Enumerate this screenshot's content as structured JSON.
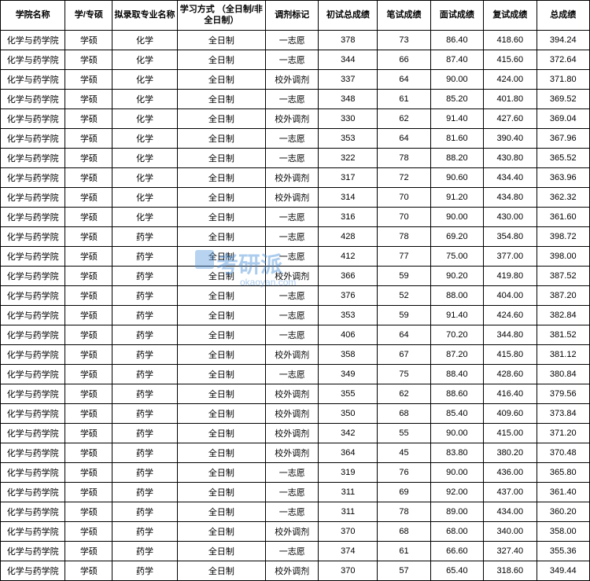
{
  "table": {
    "columns": [
      "学院名称",
      "学/专硕",
      "拟录取专业名称",
      "学习方式\n（全日制/非全日制）",
      "调剂标记",
      "初试总成绩",
      "笔试成绩",
      "面试成绩",
      "复试成绩",
      "总成绩"
    ],
    "rows": [
      [
        "化学与药学院",
        "学硕",
        "化学",
        "全日制",
        "一志愿",
        "378",
        "73",
        "86.40",
        "418.60",
        "394.24"
      ],
      [
        "化学与药学院",
        "学硕",
        "化学",
        "全日制",
        "一志愿",
        "344",
        "66",
        "87.40",
        "415.60",
        "372.64"
      ],
      [
        "化学与药学院",
        "学硕",
        "化学",
        "全日制",
        "校外调剂",
        "337",
        "64",
        "90.00",
        "424.00",
        "371.80"
      ],
      [
        "化学与药学院",
        "学硕",
        "化学",
        "全日制",
        "一志愿",
        "348",
        "61",
        "85.20",
        "401.80",
        "369.52"
      ],
      [
        "化学与药学院",
        "学硕",
        "化学",
        "全日制",
        "校外调剂",
        "330",
        "62",
        "91.40",
        "427.60",
        "369.04"
      ],
      [
        "化学与药学院",
        "学硕",
        "化学",
        "全日制",
        "一志愿",
        "353",
        "64",
        "81.60",
        "390.40",
        "367.96"
      ],
      [
        "化学与药学院",
        "学硕",
        "化学",
        "全日制",
        "一志愿",
        "322",
        "78",
        "88.20",
        "430.80",
        "365.52"
      ],
      [
        "化学与药学院",
        "学硕",
        "化学",
        "全日制",
        "校外调剂",
        "317",
        "72",
        "90.60",
        "434.40",
        "363.96"
      ],
      [
        "化学与药学院",
        "学硕",
        "化学",
        "全日制",
        "校外调剂",
        "314",
        "70",
        "91.20",
        "434.80",
        "362.32"
      ],
      [
        "化学与药学院",
        "学硕",
        "化学",
        "全日制",
        "一志愿",
        "316",
        "70",
        "90.00",
        "430.00",
        "361.60"
      ],
      [
        "化学与药学院",
        "学硕",
        "药学",
        "全日制",
        "一志愿",
        "428",
        "78",
        "69.20",
        "354.80",
        "398.72"
      ],
      [
        "化学与药学院",
        "学硕",
        "药学",
        "全日制",
        "一志愿",
        "412",
        "77",
        "75.00",
        "377.00",
        "398.00"
      ],
      [
        "化学与药学院",
        "学硕",
        "药学",
        "全日制",
        "校外调剂",
        "366",
        "59",
        "90.20",
        "419.80",
        "387.52"
      ],
      [
        "化学与药学院",
        "学硕",
        "药学",
        "全日制",
        "一志愿",
        "376",
        "52",
        "88.00",
        "404.00",
        "387.20"
      ],
      [
        "化学与药学院",
        "学硕",
        "药学",
        "全日制",
        "一志愿",
        "353",
        "59",
        "91.40",
        "424.60",
        "382.84"
      ],
      [
        "化学与药学院",
        "学硕",
        "药学",
        "全日制",
        "一志愿",
        "406",
        "64",
        "70.20",
        "344.80",
        "381.52"
      ],
      [
        "化学与药学院",
        "学硕",
        "药学",
        "全日制",
        "校外调剂",
        "358",
        "67",
        "87.20",
        "415.80",
        "381.12"
      ],
      [
        "化学与药学院",
        "学硕",
        "药学",
        "全日制",
        "一志愿",
        "349",
        "75",
        "88.40",
        "428.60",
        "380.84"
      ],
      [
        "化学与药学院",
        "学硕",
        "药学",
        "全日制",
        "校外调剂",
        "355",
        "62",
        "88.60",
        "416.40",
        "379.56"
      ],
      [
        "化学与药学院",
        "学硕",
        "药学",
        "全日制",
        "校外调剂",
        "350",
        "68",
        "85.40",
        "409.60",
        "373.84"
      ],
      [
        "化学与药学院",
        "学硕",
        "药学",
        "全日制",
        "校外调剂",
        "342",
        "55",
        "90.00",
        "415.00",
        "371.20"
      ],
      [
        "化学与药学院",
        "学硕",
        "药学",
        "全日制",
        "校外调剂",
        "364",
        "45",
        "83.80",
        "380.20",
        "370.48"
      ],
      [
        "化学与药学院",
        "学硕",
        "药学",
        "全日制",
        "一志愿",
        "319",
        "76",
        "90.00",
        "436.00",
        "365.80"
      ],
      [
        "化学与药学院",
        "学硕",
        "药学",
        "全日制",
        "一志愿",
        "311",
        "69",
        "92.00",
        "437.00",
        "361.40"
      ],
      [
        "化学与药学院",
        "学硕",
        "药学",
        "全日制",
        "一志愿",
        "311",
        "78",
        "89.00",
        "434.00",
        "360.20"
      ],
      [
        "化学与药学院",
        "学硕",
        "药学",
        "全日制",
        "校外调剂",
        "370",
        "68",
        "68.00",
        "340.00",
        "358.00"
      ],
      [
        "化学与药学院",
        "学硕",
        "药学",
        "全日制",
        "一志愿",
        "374",
        "61",
        "66.60",
        "327.40",
        "355.36"
      ],
      [
        "化学与药学院",
        "学硕",
        "药学",
        "全日制",
        "校外调剂",
        "370",
        "57",
        "65.40",
        "318.60",
        "349.44"
      ]
    ],
    "column_widths": [
      "11%",
      "8%",
      "11%",
      "15%",
      "9%",
      "10%",
      "9%",
      "9%",
      "9%",
      "9%"
    ],
    "border_color": "#000000",
    "background_color": "#ffffff",
    "font_size": 11,
    "header_font_weight": "bold"
  },
  "watermark": {
    "text": "考研派",
    "subtext": "okaoyan.com",
    "color": "#4a90d9",
    "opacity": 0.45
  }
}
